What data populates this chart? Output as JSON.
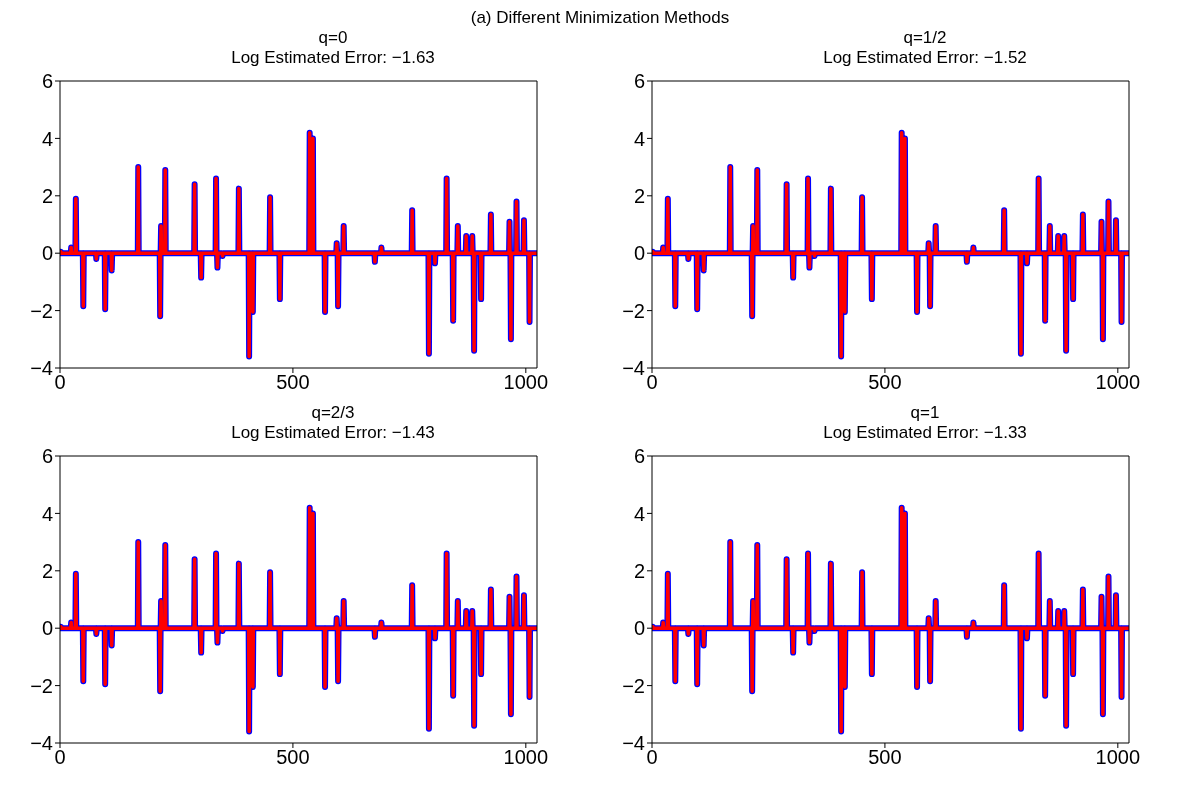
{
  "chart_data": [
    {
      "type": "line",
      "title": "q=0",
      "subtitle": "Log Estimated Error: −1.63",
      "annotations": [
        "(a) Different Minimization Methods"
      ],
      "xlim": [
        0,
        1024
      ],
      "xticks": [
        0,
        500,
        1000
      ],
      "ylim": [
        -4,
        6
      ],
      "yticks": [
        -4,
        -2,
        0,
        2,
        4,
        6
      ],
      "grid": false,
      "marker": "none",
      "line_style": "solid",
      "x": [
        0,
        1,
        2,
        3,
        23,
        24,
        25,
        33,
        34,
        35,
        49,
        50,
        51,
        77,
        78,
        79,
        96,
        97,
        98,
        110,
        111,
        112,
        167,
        168,
        169,
        214,
        215,
        216,
        217,
        218,
        225,
        226,
        227,
        288,
        289,
        290,
        302,
        303,
        304,
        334,
        335,
        336,
        337,
        338,
        339,
        348,
        349,
        350,
        383,
        384,
        385,
        405,
        406,
        407,
        413,
        414,
        415,
        450,
        451,
        452,
        471,
        472,
        473,
        535,
        536,
        537,
        542,
        543,
        544,
        568,
        569,
        570,
        593,
        594,
        595,
        596,
        597,
        598,
        608,
        609,
        610,
        675,
        676,
        677,
        689,
        690,
        691,
        755,
        756,
        757,
        791,
        792,
        793,
        804,
        805,
        806,
        829,
        830,
        831,
        843,
        844,
        845,
        853,
        854,
        855,
        871,
        872,
        873,
        884,
        885,
        886,
        888,
        889,
        890,
        903,
        904,
        905,
        924,
        925,
        926,
        964,
        965,
        966,
        967,
        968,
        969,
        979,
        980,
        981,
        995,
        996,
        997,
        1007,
        1008,
        1009,
        1023
      ],
      "series": [
        {
          "color": "#0000ff",
          "values": [
            0,
            0,
            0.05,
            0,
            0,
            0.2,
            0,
            0,
            1.9,
            0,
            0,
            -1.85,
            0,
            0,
            -0.2,
            0,
            0,
            -1.95,
            0,
            0,
            -0.6,
            0,
            0,
            3,
            0,
            0,
            -2.2,
            0,
            0.95,
            0,
            0,
            2.9,
            0,
            0,
            2.4,
            0,
            0,
            -0.85,
            0,
            0,
            2.6,
            0,
            0,
            -0.5,
            0,
            0,
            -0.1,
            0,
            0,
            2.25,
            0,
            0,
            -3.6,
            0,
            0,
            -2.05,
            0,
            0,
            1.95,
            0,
            0,
            -1.6,
            0,
            0,
            4.2,
            0,
            0,
            4,
            0,
            0,
            -2.05,
            0,
            0,
            0.35,
            0,
            0,
            -1.85,
            0,
            0,
            0.95,
            0,
            0,
            -0.3,
            0,
            0,
            0.2,
            0,
            0,
            1.5,
            0,
            0,
            -3.5,
            0,
            0,
            -0.35,
            0,
            0,
            2.6,
            0,
            0,
            -2.35,
            0,
            0,
            0.95,
            0,
            0,
            0.6,
            0,
            0,
            0.6,
            0,
            0,
            -3.4,
            0,
            0,
            -1.6,
            0,
            0,
            1.35,
            0,
            0,
            1.1,
            0,
            0,
            -3,
            0,
            0,
            1.8,
            0,
            0,
            1.15,
            0,
            0,
            -2.4,
            0,
            0
          ]
        },
        {
          "color": "#ff0000",
          "values": [
            0,
            0,
            0.05,
            0,
            0,
            0.2,
            0,
            0,
            1.9,
            0,
            0,
            -1.85,
            0,
            0,
            -0.2,
            0,
            0,
            -1.95,
            0,
            0,
            -0.6,
            0,
            0,
            3,
            0,
            0,
            -2.2,
            0,
            0.95,
            0,
            0,
            2.9,
            0,
            0,
            2.4,
            0,
            0,
            -0.85,
            0,
            0,
            2.6,
            0,
            0,
            -0.5,
            0,
            0,
            -0.1,
            0,
            0,
            2.25,
            0,
            0,
            -3.6,
            0,
            0,
            -2.05,
            0,
            0,
            1.95,
            0,
            0,
            -1.6,
            0,
            0,
            4.2,
            0,
            0,
            4,
            0,
            0,
            -2.05,
            0,
            0,
            0.35,
            0,
            0,
            -1.85,
            0,
            0,
            0.95,
            0,
            0,
            -0.3,
            0,
            0,
            0.2,
            0,
            0,
            1.5,
            0,
            0,
            -3.5,
            0,
            0,
            -0.35,
            0,
            0,
            2.6,
            0,
            0,
            -2.35,
            0,
            0,
            0.95,
            0,
            0,
            0.6,
            0,
            0,
            0.6,
            0,
            0,
            -3.4,
            0,
            0,
            -1.6,
            0,
            0,
            1.35,
            0,
            0,
            1.1,
            0,
            0,
            -3,
            0,
            0,
            1.8,
            0,
            0,
            1.15,
            0,
            0,
            -2.4,
            0,
            0
          ]
        }
      ]
    },
    {
      "type": "line",
      "title": "q=1/2",
      "subtitle": "Log Estimated Error: −1.52",
      "xlim": [
        0,
        1024
      ],
      "xticks": [
        0,
        500,
        1000
      ],
      "ylim": [
        -4,
        6
      ],
      "yticks": [
        -4,
        -2,
        0,
        2,
        4,
        6
      ],
      "grid": false,
      "marker": "none",
      "line_style": "solid",
      "x": [
        0,
        1,
        2,
        3,
        23,
        24,
        25,
        33,
        34,
        35,
        49,
        50,
        51,
        77,
        78,
        79,
        96,
        97,
        98,
        110,
        111,
        112,
        167,
        168,
        169,
        214,
        215,
        216,
        217,
        218,
        225,
        226,
        227,
        288,
        289,
        290,
        302,
        303,
        304,
        334,
        335,
        336,
        337,
        338,
        339,
        348,
        349,
        350,
        383,
        384,
        385,
        405,
        406,
        407,
        413,
        414,
        415,
        450,
        451,
        452,
        471,
        472,
        473,
        535,
        536,
        537,
        542,
        543,
        544,
        568,
        569,
        570,
        593,
        594,
        595,
        596,
        597,
        598,
        608,
        609,
        610,
        675,
        676,
        677,
        689,
        690,
        691,
        755,
        756,
        757,
        791,
        792,
        793,
        804,
        805,
        806,
        829,
        830,
        831,
        843,
        844,
        845,
        853,
        854,
        855,
        871,
        872,
        873,
        884,
        885,
        886,
        888,
        889,
        890,
        903,
        904,
        905,
        924,
        925,
        926,
        964,
        965,
        966,
        967,
        968,
        969,
        979,
        980,
        981,
        995,
        996,
        997,
        1007,
        1008,
        1009,
        1023
      ],
      "series": [
        {
          "color": "#0000ff",
          "values": [
            0,
            0,
            0.05,
            0,
            0,
            0.2,
            0,
            0,
            1.9,
            0,
            0,
            -1.85,
            0,
            0,
            -0.2,
            0,
            0,
            -1.95,
            0,
            0,
            -0.6,
            0,
            0,
            3,
            0,
            0,
            -2.2,
            0,
            0.95,
            0,
            0,
            2.9,
            0,
            0,
            2.4,
            0,
            0,
            -0.85,
            0,
            0,
            2.6,
            0,
            0,
            -0.5,
            0,
            0,
            -0.1,
            0,
            0,
            2.25,
            0,
            0,
            -3.6,
            0,
            0,
            -2.05,
            0,
            0,
            1.95,
            0,
            0,
            -1.6,
            0,
            0,
            4.2,
            0,
            0,
            4,
            0,
            0,
            -2.05,
            0,
            0,
            0.35,
            0,
            0,
            -1.85,
            0,
            0,
            0.95,
            0,
            0,
            -0.3,
            0,
            0,
            0.2,
            0,
            0,
            1.5,
            0,
            0,
            -3.5,
            0,
            0,
            -0.35,
            0,
            0,
            2.6,
            0,
            0,
            -2.35,
            0,
            0,
            0.95,
            0,
            0,
            0.6,
            0,
            0,
            0.6,
            0,
            0,
            -3.4,
            0,
            0,
            -1.6,
            0,
            0,
            1.35,
            0,
            0,
            1.1,
            0,
            0,
            -3,
            0,
            0,
            1.8,
            0,
            0,
            1.15,
            0,
            0,
            -2.4,
            0,
            0
          ]
        },
        {
          "color": "#ff0000",
          "values": [
            0,
            0,
            0.05,
            0,
            0,
            0.2,
            0,
            0,
            1.9,
            0,
            0,
            -1.85,
            0,
            0,
            -0.2,
            0,
            0,
            -1.95,
            0,
            0,
            -0.6,
            0,
            0,
            3,
            0,
            0,
            -2.2,
            0,
            0.95,
            0,
            0,
            2.9,
            0,
            0,
            2.4,
            0,
            0,
            -0.85,
            0,
            0,
            2.6,
            0,
            0,
            -0.5,
            0,
            0,
            -0.1,
            0,
            0,
            2.25,
            0,
            0,
            -3.6,
            0,
            0,
            -2.05,
            0,
            0,
            1.95,
            0,
            0,
            -1.6,
            0,
            0,
            4.2,
            0,
            0,
            4,
            0,
            0,
            -2.05,
            0,
            0,
            0.35,
            0,
            0,
            -1.85,
            0,
            0,
            0.95,
            0,
            0,
            -0.3,
            0,
            0,
            0.2,
            0,
            0,
            1.5,
            0,
            0,
            -3.5,
            0,
            0,
            -0.35,
            0,
            0,
            2.6,
            0,
            0,
            -2.35,
            0,
            0,
            0.95,
            0,
            0,
            0.6,
            0,
            0,
            0.6,
            0,
            0,
            -3.4,
            0,
            0,
            -1.6,
            0,
            0,
            1.35,
            0,
            0,
            1.1,
            0,
            0,
            -3,
            0,
            0,
            1.8,
            0,
            0,
            1.15,
            0,
            0,
            -2.4,
            0,
            0
          ]
        }
      ]
    },
    {
      "type": "line",
      "title": "q=2/3",
      "subtitle": "Log Estimated Error: −1.43",
      "xlim": [
        0,
        1024
      ],
      "xticks": [
        0,
        500,
        1000
      ],
      "ylim": [
        -4,
        6
      ],
      "yticks": [
        -4,
        -2,
        0,
        2,
        4,
        6
      ],
      "grid": false,
      "marker": "none",
      "line_style": "solid",
      "x": [
        0,
        1,
        2,
        3,
        23,
        24,
        25,
        33,
        34,
        35,
        49,
        50,
        51,
        77,
        78,
        79,
        96,
        97,
        98,
        110,
        111,
        112,
        167,
        168,
        169,
        214,
        215,
        216,
        217,
        218,
        225,
        226,
        227,
        288,
        289,
        290,
        302,
        303,
        304,
        334,
        335,
        336,
        337,
        338,
        339,
        348,
        349,
        350,
        383,
        384,
        385,
        405,
        406,
        407,
        413,
        414,
        415,
        450,
        451,
        452,
        471,
        472,
        473,
        535,
        536,
        537,
        542,
        543,
        544,
        568,
        569,
        570,
        593,
        594,
        595,
        596,
        597,
        598,
        608,
        609,
        610,
        675,
        676,
        677,
        689,
        690,
        691,
        755,
        756,
        757,
        791,
        792,
        793,
        804,
        805,
        806,
        829,
        830,
        831,
        843,
        844,
        845,
        853,
        854,
        855,
        871,
        872,
        873,
        884,
        885,
        886,
        888,
        889,
        890,
        903,
        904,
        905,
        924,
        925,
        926,
        964,
        965,
        966,
        967,
        968,
        969,
        979,
        980,
        981,
        995,
        996,
        997,
        1007,
        1008,
        1009,
        1023
      ],
      "series": [
        {
          "color": "#0000ff",
          "values": [
            0,
            0,
            0.05,
            0,
            0,
            0.2,
            0,
            0,
            1.9,
            0,
            0,
            -1.85,
            0,
            0,
            -0.2,
            0,
            0,
            -1.95,
            0,
            0,
            -0.6,
            0,
            0,
            3,
            0,
            0,
            -2.2,
            0,
            0.95,
            0,
            0,
            2.9,
            0,
            0,
            2.4,
            0,
            0,
            -0.85,
            0,
            0,
            2.6,
            0,
            0,
            -0.5,
            0,
            0,
            -0.1,
            0,
            0,
            2.25,
            0,
            0,
            -3.6,
            0,
            0,
            -2.05,
            0,
            0,
            1.95,
            0,
            0,
            -1.6,
            0,
            0,
            4.2,
            0,
            0,
            4,
            0,
            0,
            -2.05,
            0,
            0,
            0.35,
            0,
            0,
            -1.85,
            0,
            0,
            0.95,
            0,
            0,
            -0.3,
            0,
            0,
            0.2,
            0,
            0,
            1.5,
            0,
            0,
            -3.5,
            0,
            0,
            -0.35,
            0,
            0,
            2.6,
            0,
            0,
            -2.35,
            0,
            0,
            0.95,
            0,
            0,
            0.6,
            0,
            0,
            0.6,
            0,
            0,
            -3.4,
            0,
            0,
            -1.6,
            0,
            0,
            1.35,
            0,
            0,
            1.1,
            0,
            0,
            -3,
            0,
            0,
            1.8,
            0,
            0,
            1.15,
            0,
            0,
            -2.4,
            0,
            0
          ]
        },
        {
          "color": "#ff0000",
          "values": [
            0,
            0,
            0.05,
            0,
            0,
            0.2,
            0,
            0,
            1.9,
            0,
            0,
            -1.85,
            0,
            0,
            -0.2,
            0,
            0,
            -1.95,
            0,
            0,
            -0.6,
            0,
            0,
            3,
            0,
            0,
            -2.2,
            0,
            0.95,
            0,
            0,
            2.9,
            0,
            0,
            2.4,
            0,
            0,
            -0.85,
            0,
            0,
            2.6,
            0,
            0,
            -0.5,
            0,
            0,
            -0.1,
            0,
            0,
            2.25,
            0,
            0,
            -3.6,
            0,
            0,
            -2.05,
            0,
            0,
            1.95,
            0,
            0,
            -1.6,
            0,
            0,
            4.2,
            0,
            0,
            4,
            0,
            0,
            -2.05,
            0,
            0,
            0.35,
            0,
            0,
            -1.85,
            0,
            0,
            0.95,
            0,
            0,
            -0.3,
            0,
            0,
            0.2,
            0,
            0,
            1.5,
            0,
            0,
            -3.5,
            0,
            0,
            -0.35,
            0,
            0,
            2.6,
            0,
            0,
            -2.35,
            0,
            0,
            0.95,
            0,
            0,
            0.6,
            0,
            0,
            0.6,
            0,
            0,
            -3.4,
            0,
            0,
            -1.6,
            0,
            0,
            1.35,
            0,
            0,
            1.1,
            0,
            0,
            -3,
            0,
            0,
            1.8,
            0,
            0,
            1.15,
            0,
            0,
            -2.4,
            0,
            0
          ]
        }
      ]
    },
    {
      "type": "line",
      "title": "q=1",
      "subtitle": "Log Estimated Error: −1.33",
      "xlim": [
        0,
        1024
      ],
      "xticks": [
        0,
        500,
        1000
      ],
      "ylim": [
        -4,
        6
      ],
      "yticks": [
        -4,
        -2,
        0,
        2,
        4,
        6
      ],
      "grid": false,
      "marker": "none",
      "line_style": "solid",
      "x": [
        0,
        1,
        2,
        3,
        23,
        24,
        25,
        33,
        34,
        35,
        49,
        50,
        51,
        77,
        78,
        79,
        96,
        97,
        98,
        110,
        111,
        112,
        167,
        168,
        169,
        214,
        215,
        216,
        217,
        218,
        225,
        226,
        227,
        288,
        289,
        290,
        302,
        303,
        304,
        334,
        335,
        336,
        337,
        338,
        339,
        348,
        349,
        350,
        383,
        384,
        385,
        405,
        406,
        407,
        413,
        414,
        415,
        450,
        451,
        452,
        471,
        472,
        473,
        535,
        536,
        537,
        542,
        543,
        544,
        568,
        569,
        570,
        593,
        594,
        595,
        596,
        597,
        598,
        608,
        609,
        610,
        675,
        676,
        677,
        689,
        690,
        691,
        755,
        756,
        757,
        791,
        792,
        793,
        804,
        805,
        806,
        829,
        830,
        831,
        843,
        844,
        845,
        853,
        854,
        855,
        871,
        872,
        873,
        884,
        885,
        886,
        888,
        889,
        890,
        903,
        904,
        905,
        924,
        925,
        926,
        964,
        965,
        966,
        967,
        968,
        969,
        979,
        980,
        981,
        995,
        996,
        997,
        1007,
        1008,
        1009,
        1023
      ],
      "series": [
        {
          "color": "#0000ff",
          "values": [
            0,
            0,
            0.05,
            0,
            0,
            0.2,
            0,
            0,
            1.9,
            0,
            0,
            -1.85,
            0,
            0,
            -0.2,
            0,
            0,
            -1.95,
            0,
            0,
            -0.6,
            0,
            0,
            3,
            0,
            0,
            -2.2,
            0,
            0.95,
            0,
            0,
            2.9,
            0,
            0,
            2.4,
            0,
            0,
            -0.85,
            0,
            0,
            2.6,
            0,
            0,
            -0.5,
            0,
            0,
            -0.1,
            0,
            0,
            2.25,
            0,
            0,
            -3.6,
            0,
            0,
            -2.05,
            0,
            0,
            1.95,
            0,
            0,
            -1.6,
            0,
            0,
            4.2,
            0,
            0,
            4,
            0,
            0,
            -2.05,
            0,
            0,
            0.35,
            0,
            0,
            -1.85,
            0,
            0,
            0.95,
            0,
            0,
            -0.3,
            0,
            0,
            0.2,
            0,
            0,
            1.5,
            0,
            0,
            -3.5,
            0,
            0,
            -0.35,
            0,
            0,
            2.6,
            0,
            0,
            -2.35,
            0,
            0,
            0.95,
            0,
            0,
            0.6,
            0,
            0,
            0.6,
            0,
            0,
            -3.4,
            0,
            0,
            -1.6,
            0,
            0,
            1.35,
            0,
            0,
            1.1,
            0,
            0,
            -3,
            0,
            0,
            1.8,
            0,
            0,
            1.15,
            0,
            0,
            -2.4,
            0,
            0
          ]
        },
        {
          "color": "#ff0000",
          "values": [
            0,
            0,
            0.05,
            0,
            0,
            0.2,
            0,
            0,
            1.9,
            0,
            0,
            -1.85,
            0,
            0,
            -0.2,
            0,
            0,
            -1.95,
            0,
            0,
            -0.6,
            0,
            0,
            3,
            0,
            0,
            -2.2,
            0,
            0.95,
            0,
            0,
            2.9,
            0,
            0,
            2.4,
            0,
            0,
            -0.85,
            0,
            0,
            2.6,
            0,
            0,
            -0.5,
            0,
            0,
            -0.1,
            0,
            0,
            2.25,
            0,
            0,
            -3.6,
            0,
            0,
            -2.05,
            0,
            0,
            1.95,
            0,
            0,
            -1.6,
            0,
            0,
            4.2,
            0,
            0,
            4,
            0,
            0,
            -2.05,
            0,
            0,
            0.35,
            0,
            0,
            -1.85,
            0,
            0,
            0.95,
            0,
            0,
            -0.3,
            0,
            0,
            0.2,
            0,
            0,
            1.5,
            0,
            0,
            -3.5,
            0,
            0,
            -0.35,
            0,
            0,
            2.6,
            0,
            0,
            -2.35,
            0,
            0,
            0.95,
            0,
            0,
            0.6,
            0,
            0,
            0.6,
            0,
            0,
            -3.4,
            0,
            0,
            -1.6,
            0,
            0,
            1.35,
            0,
            0,
            1.1,
            0,
            0,
            -3,
            0,
            0,
            1.8,
            0,
            0,
            1.15,
            0,
            0,
            -2.4,
            0,
            0
          ]
        }
      ]
    }
  ]
}
